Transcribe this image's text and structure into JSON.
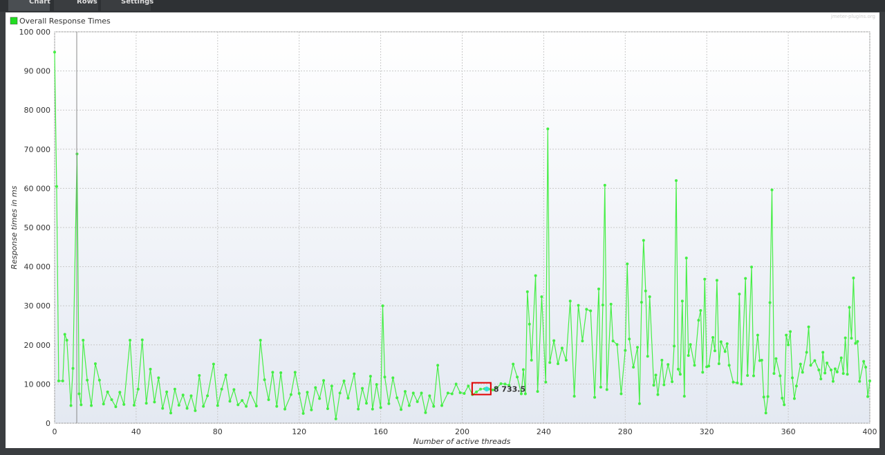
{
  "tabs": [
    "Chart",
    "Rows",
    "Settings"
  ],
  "watermark": "jmeter-plugins.org",
  "chart_data": {
    "type": "line",
    "xlabel": "Number of active threads",
    "ylabel": "Response times in ms",
    "grid": true,
    "legend": "top-left",
    "xlim": [
      0,
      400
    ],
    "xticks": [
      0,
      40,
      80,
      120,
      160,
      200,
      240,
      280,
      320,
      360,
      400
    ],
    "ylim": [
      0,
      100000
    ],
    "yticks": [
      0,
      {
        "value": 10000,
        "label": "10 000"
      },
      {
        "value": 20000,
        "label": "20 000"
      },
      {
        "value": 30000,
        "label": "30 000"
      },
      {
        "value": 40000,
        "label": "40 000"
      },
      {
        "value": 50000,
        "label": "50 000"
      },
      {
        "value": 60000,
        "label": "60 000"
      },
      {
        "value": 70000,
        "label": "70 000"
      },
      {
        "value": 80000,
        "label": "80 000"
      },
      {
        "value": 90000,
        "label": "90 000"
      },
      {
        "value": 100000,
        "label": "100 000"
      }
    ],
    "annotation": {
      "x": 212,
      "y": 8733.5,
      "label": "8 733.5"
    },
    "x": [
      0,
      1,
      2,
      4,
      5,
      6,
      8,
      9,
      11,
      12,
      13,
      14,
      16,
      18,
      20,
      22,
      24,
      26,
      28,
      30,
      32,
      34,
      37,
      39,
      41,
      43,
      45,
      47,
      49,
      51,
      53,
      55,
      57,
      59,
      61,
      63,
      65,
      67,
      69,
      71,
      73,
      75,
      78,
      80,
      82,
      84,
      86,
      88,
      90,
      92,
      94,
      96,
      99,
      101,
      103,
      105,
      107,
      109,
      111,
      113,
      116,
      118,
      120,
      122,
      124,
      126,
      128,
      130,
      132,
      134,
      136,
      138,
      140,
      142,
      144,
      147,
      149,
      151,
      153,
      155,
      156,
      158,
      160,
      161,
      162,
      164,
      166,
      168,
      170,
      172,
      174,
      176,
      178,
      180,
      182,
      184,
      186,
      188,
      190,
      193,
      195,
      197,
      199,
      201,
      203,
      205,
      207,
      209,
      211,
      213,
      215,
      217,
      219,
      221,
      223,
      225,
      227,
      229,
      230,
      231,
      232,
      233,
      234,
      236,
      237,
      239,
      241,
      242,
      243,
      245,
      247,
      249,
      251,
      253,
      255,
      257,
      259,
      261,
      263,
      265,
      267,
      268,
      269,
      270,
      271,
      273,
      274,
      276,
      278,
      280,
      281,
      282,
      284,
      286,
      287,
      288,
      289,
      290,
      291,
      292,
      294,
      295,
      296,
      298,
      299,
      301,
      303,
      304,
      305,
      306,
      307,
      308,
      309,
      310,
      311,
      312,
      314,
      316,
      317,
      318,
      319,
      320,
      321,
      323,
      324,
      325,
      326,
      327,
      329,
      330,
      331,
      333,
      335,
      336,
      337,
      339,
      340,
      342,
      343,
      345,
      346,
      347,
      348,
      349,
      350,
      351,
      352,
      353,
      354,
      356,
      357,
      358,
      359,
      360,
      361,
      362,
      363,
      364,
      366,
      367,
      369,
      370,
      371,
      373,
      375,
      376,
      377,
      378,
      379,
      381,
      382,
      383,
      384,
      386,
      387,
      388,
      389,
      390,
      391,
      392,
      393,
      394,
      395,
      397,
      398,
      399,
      400
    ],
    "series": [
      {
        "name": "Overall Response Times",
        "color": "#44ee44",
        "values": [
          94800,
          60500,
          10800,
          10800,
          22700,
          21200,
          4500,
          14000,
          68800,
          7500,
          4700,
          21200,
          11000,
          4500,
          15200,
          11000,
          4900,
          8000,
          6000,
          4200,
          7900,
          4800,
          21200,
          4600,
          8700,
          21300,
          5100,
          13800,
          5400,
          11600,
          3800,
          8000,
          2600,
          8700,
          4600,
          7200,
          3800,
          7000,
          3200,
          12200,
          4300,
          7000,
          15100,
          4500,
          8700,
          12300,
          5600,
          8600,
          4700,
          5800,
          4300,
          7800,
          4400,
          21200,
          11100,
          6000,
          13000,
          4300,
          12900,
          3600,
          7300,
          13000,
          7600,
          2500,
          7900,
          3400,
          9100,
          6300,
          10900,
          3700,
          9500,
          1100,
          7700,
          10800,
          6400,
          12600,
          3600,
          8900,
          5100,
          12000,
          3600,
          9900,
          4000,
          30000,
          11800,
          5000,
          11600,
          6500,
          3500,
          8100,
          4500,
          7700,
          5500,
          7700,
          2700,
          7000,
          4300,
          14800,
          4500,
          7700,
          7500,
          10000,
          7800,
          7600,
          9500,
          7300,
          8000,
          8700,
          8800,
          8700,
          8500,
          9000,
          10100,
          10000,
          9700,
          15100,
          11800,
          7500,
          13700,
          7500,
          33600,
          25300,
          16100,
          37700,
          8100,
          32300,
          10500,
          75200,
          15500,
          21100,
          15200,
          19200,
          16100,
          31200,
          6900,
          30100,
          21000,
          29100,
          28700,
          6600,
          34300,
          9200,
          30200,
          60800,
          8600,
          30400,
          21000,
          20100,
          7500,
          18600,
          40700,
          21500,
          14300,
          19400,
          5000,
          30900,
          46700,
          33800,
          17100,
          32300,
          9700,
          12300,
          7300,
          16100,
          9800,
          15000,
          10600,
          19700,
          62000,
          13800,
          12500,
          31200,
          6900,
          42200,
          17300,
          20100,
          14800,
          26300,
          28800,
          13000,
          36800,
          14400,
          14600,
          21900,
          18500,
          36500,
          15200,
          20800,
          18300,
          20300,
          14800,
          10500,
          10300,
          33000,
          10000,
          37000,
          12200,
          39900,
          12100,
          22500,
          16000,
          16100,
          6700,
          2600,
          6800,
          30800,
          59600,
          12700,
          16500,
          12100,
          6400,
          4700,
          22500,
          20000,
          23400,
          11600,
          6300,
          9500,
          15100,
          13000,
          18100,
          24600,
          14800,
          16000,
          13600,
          11300,
          18100,
          12800,
          15400,
          13600,
          10700,
          13900,
          13100,
          16700,
          12700,
          21800,
          12500,
          29600,
          21700,
          37100,
          20400,
          20900,
          10700,
          15800,
          14300,
          6800,
          10800
        ]
      }
    ]
  }
}
